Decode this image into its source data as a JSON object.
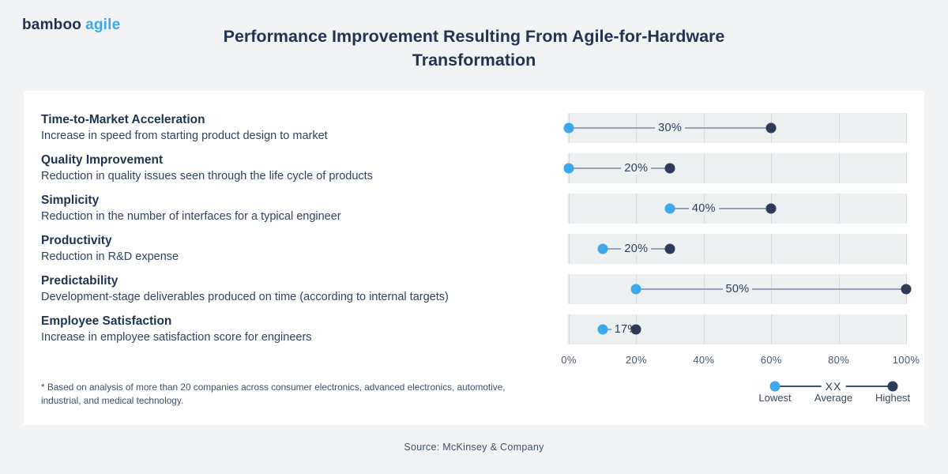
{
  "colors": {
    "navy": "#22344F",
    "blue": "#3BA7EC",
    "page_bg": "#F1F3F4",
    "card_bg": "#FFFFFF",
    "band_bg": "#ECF0F1",
    "gridline": "#D5DCE1",
    "connector": "#95A3B2",
    "dot_low": "#3BA7EC",
    "dot_high": "#2B3B58"
  },
  "header": {
    "logo_part1": "bamboo",
    "logo_part2": "agile",
    "title_line1": "Performance Improvement Resulting From Agile-for-Hardware",
    "title_line2": "Transformation"
  },
  "chart_data": {
    "type": "dumbbell",
    "title": "Performance Improvement Resulting From Agile-for-Hardware Transformation",
    "xlim": [
      0,
      100
    ],
    "x_ticks": [
      "0%",
      "20%",
      "40%",
      "60%",
      "80%",
      "100%"
    ],
    "x_tick_values": [
      0,
      20,
      40,
      60,
      80,
      100
    ],
    "grid": true,
    "legend_position": "bottom-right",
    "rows": [
      {
        "name": "Time-to-Market Acceleration",
        "description": "Increase in speed from starting product design to market",
        "lowest": 0,
        "average": 30,
        "highest": 60,
        "average_label": "30%"
      },
      {
        "name": "Quality Improvement",
        "description": "Reduction in quality issues seen through the life cycle of products",
        "lowest": 0,
        "average": 20,
        "highest": 30,
        "average_label": "20%"
      },
      {
        "name": "Simplicity",
        "description": "Reduction in the number of interfaces for a typical engineer",
        "lowest": 30,
        "average": 40,
        "highest": 60,
        "average_label": "40%"
      },
      {
        "name": "Productivity",
        "description": "Reduction in R&D expense",
        "lowest": 10,
        "average": 20,
        "highest": 30,
        "average_label": "20%"
      },
      {
        "name": "Predictability",
        "description": "Development-stage deliverables produced on time (according to internal targets)",
        "lowest": 20,
        "average": 50,
        "highest": 100,
        "average_label": "50%"
      },
      {
        "name": "Employee Satisfaction",
        "description": "Increase in employee satisfaction score for engineers",
        "lowest": 10,
        "average": 17,
        "highest": 20,
        "average_label": "17%"
      }
    ],
    "legend": {
      "lowest": "Lowest",
      "average": "Average",
      "highest": "Highest",
      "average_symbol": "XX"
    }
  },
  "footnote": "* Based on analysis of more than 20 companies across consumer electronics, advanced electronics, automotive, industrial, and medical technology.",
  "source": "Source: McKinsey & Company"
}
